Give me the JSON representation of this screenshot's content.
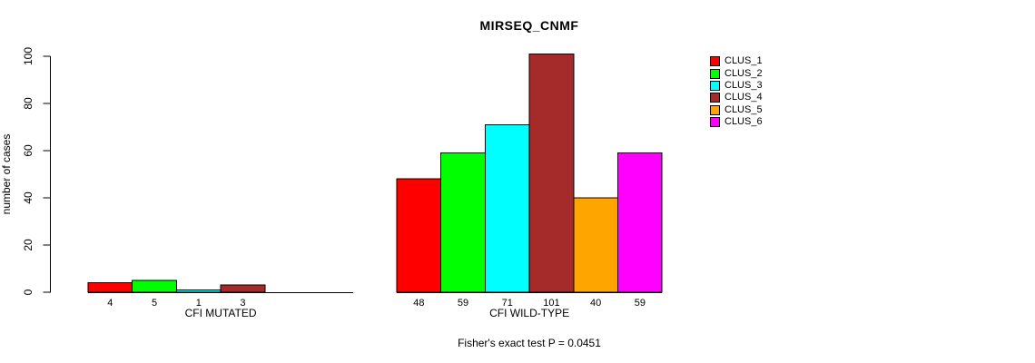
{
  "chart_data": {
    "type": "bar",
    "title": "MIRSEQ_CNMF",
    "ylabel": "number of cases",
    "ylim": [
      0,
      100
    ],
    "yticks": [
      0,
      20,
      40,
      60,
      80,
      100
    ],
    "grid": false,
    "legend_position": "right",
    "clusters": [
      "CLUS_1",
      "CLUS_2",
      "CLUS_3",
      "CLUS_4",
      "CLUS_5",
      "CLUS_6"
    ],
    "colors": [
      "#FF0000",
      "#00FF00",
      "#00FFFF",
      "#A52A2A",
      "#FFA500",
      "#FF00FF"
    ],
    "groups": [
      {
        "label": "CFI MUTATED",
        "values": [
          4,
          5,
          1,
          3,
          0,
          0
        ]
      },
      {
        "label": "CFI WILD-TYPE",
        "values": [
          48,
          59,
          71,
          101,
          40,
          59
        ]
      }
    ],
    "annotation": "Fisher's exact test P = 0.0451"
  }
}
